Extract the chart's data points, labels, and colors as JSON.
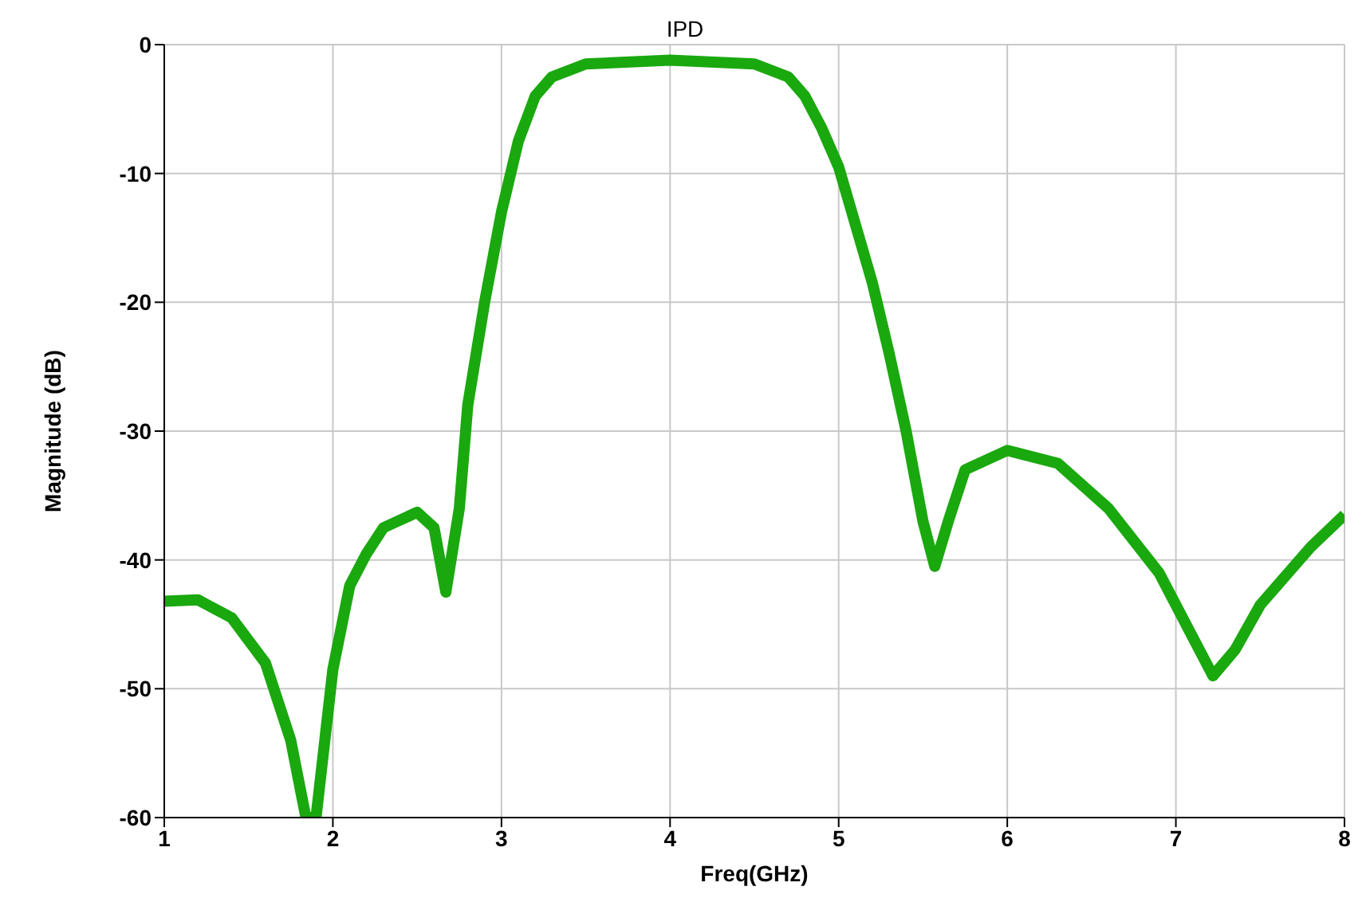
{
  "chart_data": {
    "type": "line",
    "title": "IPD",
    "xlabel": "Freq(GHz)",
    "ylabel": "Magnitude (dB)",
    "x": [
      1.0,
      1.2,
      1.4,
      1.6,
      1.75,
      1.84,
      1.9,
      2.0,
      2.1,
      2.2,
      2.3,
      2.5,
      2.6,
      2.67,
      2.75,
      2.8,
      2.9,
      3.0,
      3.1,
      3.2,
      3.3,
      3.5,
      4.0,
      4.5,
      4.7,
      4.8,
      4.9,
      5.0,
      5.1,
      5.2,
      5.3,
      5.4,
      5.5,
      5.57,
      5.65,
      5.75,
      6.0,
      6.3,
      6.6,
      6.9,
      7.1,
      7.22,
      7.35,
      7.5,
      7.8,
      8.0
    ],
    "series": [
      {
        "color": "#1aa80f",
        "values": [
          -43.2,
          -43.1,
          -44.5,
          -48,
          -54,
          -60,
          -60,
          -48.5,
          -42,
          -39.5,
          -37.5,
          -36.3,
          -37.5,
          -42.5,
          -36,
          -28,
          -20,
          -13,
          -7.5,
          -4,
          -2.5,
          -1.5,
          -1.2,
          -1.5,
          -2.5,
          -4,
          -6.5,
          -9.5,
          -14,
          -18.5,
          -24,
          -30,
          -37,
          -40.5,
          -37,
          -33,
          -31.5,
          -32.5,
          -36,
          -41,
          -46,
          -49,
          -47,
          -43.5,
          -39,
          -36.5
        ]
      }
    ],
    "xlim": [
      1,
      8
    ],
    "xticks": [
      1,
      2,
      3,
      4,
      5,
      6,
      7,
      8
    ],
    "ylim": [
      -60,
      0
    ],
    "yticks": [
      -60,
      -50,
      -40,
      -30,
      -20,
      -10,
      0
    ],
    "grid": true,
    "legend": false,
    "marker": "none",
    "line_style": "solid"
  }
}
